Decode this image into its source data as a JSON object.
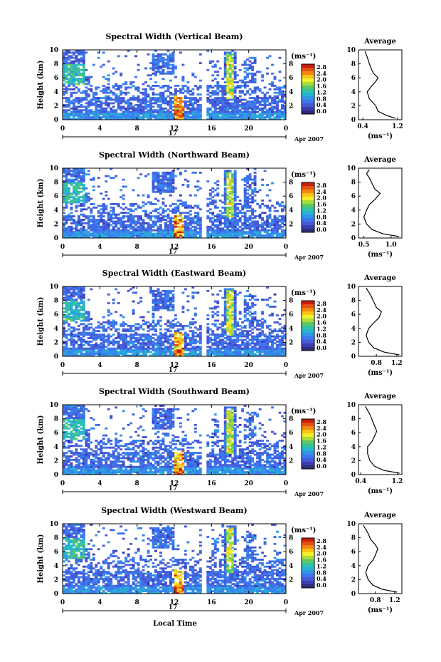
{
  "figure": {
    "xlabel": "Local Time",
    "ylabel": "Height (km)",
    "date_label": "Apr 2007",
    "day_label": "17",
    "unit_label": "(ms⁻¹)",
    "avg_title": "Average",
    "avg_xlabel": "(ms⁻¹)"
  },
  "colorbar": {
    "ticks": [
      "2.8",
      "2.4",
      "2.0",
      "1.6",
      "1.2",
      "0.8",
      "0.4",
      "0.0"
    ],
    "colors": [
      "#c81e0a",
      "#e65014",
      "#f5870f",
      "#ffc314",
      "#f0f02d",
      "#aadc3c",
      "#5ac864",
      "#32c3a0",
      "#28b4d2",
      "#3296e6",
      "#3c78f0",
      "#465ad7",
      "#3c3cb4",
      "#2d2d78"
    ]
  },
  "chart_data": [
    {
      "type": "heatmap",
      "title": "Spectral Width (Vertical Beam)",
      "xlabel": "Local Time",
      "ylabel": "Height (km)",
      "xlim": [
        0,
        24
      ],
      "ylim": [
        0,
        10
      ],
      "xticks": [
        "0",
        "4",
        "8",
        "12",
        "16",
        "20",
        "0"
      ],
      "yticks": [
        "0",
        "2",
        "4",
        "6",
        "8",
        "10"
      ],
      "right_ticks": [
        "2",
        "4",
        "6",
        "8"
      ],
      "data_gap_hours": [
        15.0,
        15.5
      ],
      "colorbar_range": [
        0.0,
        2.8
      ],
      "average": {
        "xticks": [
          "0.4",
          "1.2"
        ],
        "xlim": [
          0.3,
          1.3
        ],
        "profile": [
          [
            1.15,
            0.2
          ],
          [
            0.95,
            0.6
          ],
          [
            0.75,
            1.2
          ],
          [
            0.7,
            2.0
          ],
          [
            0.55,
            3.0
          ],
          [
            0.5,
            4.0
          ],
          [
            0.6,
            4.8
          ],
          [
            0.7,
            5.5
          ],
          [
            0.75,
            6.0
          ],
          [
            0.65,
            6.6
          ],
          [
            0.6,
            7.2
          ],
          [
            0.55,
            8.0
          ],
          [
            0.5,
            9.0
          ],
          [
            0.45,
            9.8
          ]
        ]
      }
    },
    {
      "type": "heatmap",
      "title": "Spectral Width (Northward Beam)",
      "xlabel": "Local Time",
      "ylabel": "Height (km)",
      "xlim": [
        0,
        24
      ],
      "ylim": [
        0,
        10
      ],
      "xticks": [
        "0",
        "4",
        "8",
        "12",
        "16",
        "20",
        "0"
      ],
      "yticks": [
        "0",
        "2",
        "4",
        "6",
        "8",
        "10"
      ],
      "right_ticks": [
        "2",
        "4",
        "6",
        "8"
      ],
      "data_gap_hours": [
        15.0,
        15.5
      ],
      "colorbar_range": [
        0.0,
        2.8
      ],
      "average": {
        "xticks": [
          "0.5",
          "1.0"
        ],
        "xlim": [
          0.4,
          1.2
        ],
        "profile": [
          [
            1.15,
            0.2
          ],
          [
            0.85,
            0.6
          ],
          [
            0.65,
            1.2
          ],
          [
            0.55,
            2.0
          ],
          [
            0.5,
            3.0
          ],
          [
            0.55,
            4.0
          ],
          [
            0.6,
            4.8
          ],
          [
            0.7,
            5.5
          ],
          [
            0.8,
            6.4
          ],
          [
            0.7,
            7.0
          ],
          [
            0.65,
            7.8
          ],
          [
            0.6,
            8.6
          ],
          [
            0.55,
            9.2
          ],
          [
            0.6,
            9.8
          ]
        ]
      }
    },
    {
      "type": "heatmap",
      "title": "Spectral Width (Eastward Beam)",
      "xlabel": "Local Time",
      "ylabel": "Height (km)",
      "xlim": [
        0,
        24
      ],
      "ylim": [
        0,
        10
      ],
      "xticks": [
        "0",
        "4",
        "8",
        "12",
        "16",
        "20",
        "0"
      ],
      "yticks": [
        "0",
        "2",
        "4",
        "6",
        "8",
        "10"
      ],
      "right_ticks": [
        "2",
        "4",
        "6",
        "8"
      ],
      "data_gap_hours": [
        15.0,
        15.5
      ],
      "colorbar_range": [
        0.0,
        2.8
      ],
      "average": {
        "xticks": [
          "0.8",
          "1.2"
        ],
        "xlim": [
          0.45,
          1.3
        ],
        "profile": [
          [
            1.25,
            0.2
          ],
          [
            0.95,
            0.6
          ],
          [
            0.75,
            1.2
          ],
          [
            0.65,
            2.0
          ],
          [
            0.6,
            3.0
          ],
          [
            0.65,
            4.0
          ],
          [
            0.75,
            4.8
          ],
          [
            0.85,
            5.5
          ],
          [
            0.9,
            6.4
          ],
          [
            0.8,
            7.0
          ],
          [
            0.75,
            7.8
          ],
          [
            0.7,
            8.6
          ],
          [
            0.65,
            9.2
          ],
          [
            0.6,
            9.8
          ]
        ]
      }
    },
    {
      "type": "heatmap",
      "title": "Spectral Width (Southward Beam)",
      "xlabel": "Local Time",
      "ylabel": "Height (km)",
      "xlim": [
        0,
        24
      ],
      "ylim": [
        0,
        10
      ],
      "xticks": [
        "0",
        "4",
        "8",
        "12",
        "16",
        "20",
        "0"
      ],
      "yticks": [
        "0",
        "2",
        "4",
        "6",
        "8",
        "10"
      ],
      "right_ticks": [
        "2",
        "4",
        "6",
        "8"
      ],
      "data_gap_hours": [
        15.0,
        15.5
      ],
      "colorbar_range": [
        0.0,
        2.8
      ],
      "average": {
        "xticks": [
          "0.4",
          "1.2"
        ],
        "xlim": [
          0.35,
          1.3
        ],
        "profile": [
          [
            1.25,
            0.2
          ],
          [
            0.9,
            0.6
          ],
          [
            0.7,
            1.2
          ],
          [
            0.6,
            2.0
          ],
          [
            0.55,
            3.0
          ],
          [
            0.55,
            4.0
          ],
          [
            0.65,
            4.8
          ],
          [
            0.7,
            5.5
          ],
          [
            0.75,
            6.2
          ],
          [
            0.7,
            7.0
          ],
          [
            0.65,
            7.8
          ],
          [
            0.6,
            8.6
          ],
          [
            0.55,
            9.2
          ],
          [
            0.5,
            9.8
          ]
        ]
      }
    },
    {
      "type": "heatmap",
      "title": "Spectral Width (Westward Beam)",
      "xlabel": "Local Time",
      "ylabel": "Height (km)",
      "xlim": [
        0,
        24
      ],
      "ylim": [
        0,
        10
      ],
      "xticks": [
        "0",
        "4",
        "8",
        "12",
        "16",
        "20",
        "0"
      ],
      "yticks": [
        "0",
        "2",
        "4",
        "6",
        "8",
        "10"
      ],
      "right_ticks": [
        "2",
        "4",
        "6",
        "8"
      ],
      "data_gap_hours": [
        15.0,
        15.5
      ],
      "colorbar_range": [
        0.0,
        2.8
      ],
      "average": {
        "xticks": [
          "0.8",
          "1.2"
        ],
        "xlim": [
          0.45,
          1.35
        ],
        "profile": [
          [
            1.25,
            0.2
          ],
          [
            0.95,
            0.6
          ],
          [
            0.75,
            1.2
          ],
          [
            0.65,
            2.0
          ],
          [
            0.6,
            3.0
          ],
          [
            0.65,
            4.0
          ],
          [
            0.75,
            4.8
          ],
          [
            0.8,
            5.5
          ],
          [
            0.85,
            6.4
          ],
          [
            0.8,
            7.0
          ],
          [
            0.7,
            7.8
          ],
          [
            0.65,
            8.6
          ],
          [
            0.6,
            9.2
          ],
          [
            0.55,
            9.8
          ]
        ]
      }
    }
  ]
}
